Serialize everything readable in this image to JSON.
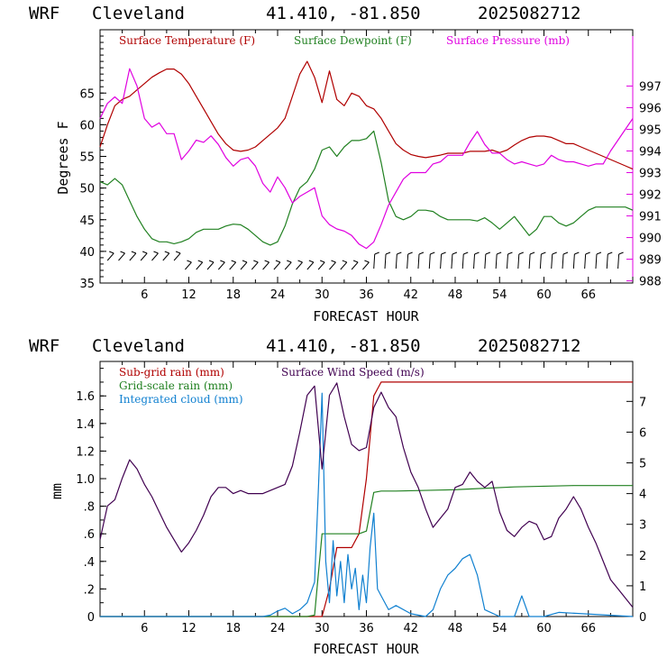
{
  "chart_data": [
    {
      "type": "line",
      "header": {
        "model": "WRF",
        "station": "Cleveland",
        "coords": "41.410, -81.850",
        "init": "2025082712"
      },
      "xlabel": "FORECAST HOUR",
      "ylabel": "Degrees F",
      "xlim": [
        0,
        72
      ],
      "x_ticks": [
        "6",
        "12",
        "18",
        "24",
        "30",
        "36",
        "42",
        "48",
        "54",
        "60",
        "66"
      ],
      "ylim": [
        35,
        75
      ],
      "y_ticks": [
        "35",
        "40",
        "45",
        "50",
        "55",
        "60",
        "65"
      ],
      "y2lim": [
        987.9,
        999.6
      ],
      "y2_ticks": [
        "988",
        "989",
        "990",
        "991",
        "992",
        "993",
        "994",
        "995",
        "996",
        "997"
      ],
      "series": [
        {
          "name": "Surface Temperature (F)",
          "color": "#b00000",
          "axis": "left",
          "x": [
            0,
            1,
            2,
            3,
            4,
            5,
            6,
            7,
            8,
            9,
            10,
            11,
            12,
            13,
            14,
            15,
            16,
            17,
            18,
            19,
            20,
            21,
            22,
            23,
            24,
            25,
            26,
            27,
            28,
            29,
            30,
            31,
            32,
            33,
            34,
            35,
            36,
            37,
            38,
            39,
            40,
            41,
            42,
            43,
            44,
            45,
            46,
            47,
            48,
            49,
            50,
            51,
            52,
            53,
            54,
            55,
            56,
            57,
            58,
            59,
            60,
            61,
            62,
            63,
            64,
            65,
            66,
            67,
            68,
            69,
            70,
            71,
            72
          ],
          "values": [
            56.5,
            60,
            63,
            64,
            64.5,
            65.5,
            66.5,
            67.5,
            68.2,
            68.8,
            68.8,
            68,
            66.5,
            64.5,
            62.5,
            60.5,
            58.5,
            57,
            56,
            55.8,
            56,
            56.5,
            57.5,
            58.5,
            59.5,
            61,
            64.5,
            68,
            70,
            67.5,
            63.5,
            68.5,
            64,
            63,
            65,
            64.5,
            63,
            62.5,
            61,
            59,
            57,
            56,
            55.3,
            55,
            54.8,
            55,
            55.2,
            55.5,
            55.5,
            55.5,
            55.8,
            55.8,
            55.8,
            56,
            55.6,
            56,
            56.8,
            57.5,
            58,
            58.2,
            58.2,
            58,
            57.5,
            57,
            57,
            56.5,
            56,
            55.5,
            55,
            54.5,
            54,
            53.5,
            53
          ]
        },
        {
          "name": "Surface Dewpoint (F)",
          "color": "#208020",
          "axis": "left",
          "x": [
            0,
            1,
            2,
            3,
            4,
            5,
            6,
            7,
            8,
            9,
            10,
            11,
            12,
            13,
            14,
            15,
            16,
            17,
            18,
            19,
            20,
            21,
            22,
            23,
            24,
            25,
            26,
            27,
            28,
            29,
            30,
            31,
            32,
            33,
            34,
            35,
            36,
            37,
            38,
            39,
            40,
            41,
            42,
            43,
            44,
            45,
            46,
            47,
            48,
            49,
            50,
            51,
            52,
            53,
            54,
            55,
            56,
            57,
            58,
            59,
            60,
            61,
            62,
            63,
            64,
            65,
            66,
            67,
            68,
            69,
            70,
            71,
            72
          ],
          "values": [
            51,
            50.5,
            51.5,
            50.5,
            48,
            45.5,
            43.5,
            42,
            41.5,
            41.5,
            41.2,
            41.5,
            42,
            43,
            43.5,
            43.5,
            43.5,
            44,
            44.3,
            44.2,
            43.5,
            42.5,
            41.5,
            41,
            41.5,
            44,
            47.5,
            50,
            51,
            53,
            56,
            56.5,
            55,
            56.5,
            57.5,
            57.5,
            57.8,
            59,
            54,
            48,
            45.5,
            45,
            45.5,
            46.5,
            46.5,
            46.3,
            45.5,
            45,
            45,
            45,
            45,
            44.8,
            45.3,
            44.5,
            43.5,
            44.5,
            45.5,
            44,
            42.5,
            43.5,
            45.5,
            45.5,
            44.5,
            44,
            44.5,
            45.5,
            46.5,
            47,
            47,
            47,
            47,
            47,
            46.5
          ]
        },
        {
          "name": "Surface Pressure (mb)",
          "color": "#e000e0",
          "axis": "right",
          "x": [
            0,
            1,
            2,
            3,
            4,
            5,
            6,
            7,
            8,
            9,
            10,
            11,
            12,
            13,
            14,
            15,
            16,
            17,
            18,
            19,
            20,
            21,
            22,
            23,
            24,
            25,
            26,
            27,
            28,
            29,
            30,
            31,
            32,
            33,
            34,
            35,
            36,
            37,
            38,
            39,
            40,
            41,
            42,
            43,
            44,
            45,
            46,
            47,
            48,
            49,
            50,
            51,
            52,
            53,
            54,
            55,
            56,
            57,
            58,
            59,
            60,
            61,
            62,
            63,
            64,
            65,
            66,
            67,
            68,
            69,
            70,
            71,
            72
          ],
          "values": [
            995.5,
            996.2,
            996.5,
            996.2,
            997.8,
            997,
            995.5,
            995.1,
            995.3,
            994.8,
            994.8,
            993.6,
            994,
            994.5,
            994.4,
            994.7,
            994.3,
            993.7,
            993.3,
            993.6,
            993.7,
            993.3,
            992.5,
            992.1,
            992.8,
            992.3,
            991.6,
            991.9,
            992.1,
            992.3,
            991,
            990.6,
            990.4,
            990.3,
            990.1,
            989.7,
            989.5,
            989.8,
            990.6,
            991.5,
            992.1,
            992.7,
            993,
            993,
            993,
            993.4,
            993.5,
            993.8,
            993.8,
            993.8,
            994.4,
            994.9,
            994.3,
            993.9,
            993.9,
            993.6,
            993.4,
            993.5,
            993.4,
            993.3,
            993.4,
            993.8,
            993.6,
            993.5,
            993.5,
            993.4,
            993.3,
            993.4,
            993.4,
            994,
            994.5,
            995,
            995.5
          ]
        }
      ],
      "wind_barbs": "present"
    },
    {
      "type": "line",
      "header": {
        "model": "WRF",
        "station": "Cleveland",
        "coords": "41.410, -81.850",
        "init": "2025082712"
      },
      "xlabel": "FORECAST HOUR",
      "ylabel": "mm",
      "xlim": [
        0,
        72
      ],
      "x_ticks": [
        "6",
        "12",
        "18",
        "24",
        "30",
        "36",
        "42",
        "48",
        "54",
        "60",
        "66"
      ],
      "ylim": [
        0,
        1.85
      ],
      "y_ticks": [
        "0",
        ".2",
        ".4",
        ".6",
        ".8",
        "1.0",
        "1.2",
        "1.4",
        "1.6"
      ],
      "y2lim": [
        0,
        8.3
      ],
      "y2_ticks": [
        "0",
        "1",
        "2",
        "3",
        "4",
        "5",
        "6",
        "7"
      ],
      "series": [
        {
          "name": "Sub-grid rain (mm)",
          "color": "#b00000",
          "axis": "left",
          "x": [
            0,
            30,
            31,
            32,
            33,
            34,
            35,
            36,
            37,
            38,
            72
          ],
          "values": [
            0,
            0,
            0.2,
            0.5,
            0.5,
            0.5,
            0.6,
            1.0,
            1.6,
            1.7,
            1.7
          ]
        },
        {
          "name": "Grid-scale rain (mm)",
          "color": "#208020",
          "axis": "left",
          "x": [
            0,
            28,
            29,
            30,
            31,
            32,
            33,
            34,
            35,
            36,
            37,
            38,
            39,
            40,
            48,
            56,
            64,
            72
          ],
          "values": [
            0,
            0,
            0.01,
            0.6,
            0.6,
            0.6,
            0.6,
            0.6,
            0.6,
            0.62,
            0.9,
            0.91,
            0.91,
            0.91,
            0.92,
            0.94,
            0.95,
            0.95
          ]
        },
        {
          "name": "Integrated cloud (mm)",
          "color": "#1080d0",
          "axis": "left",
          "x": [
            0,
            22,
            23,
            24,
            25,
            26,
            27,
            28,
            29,
            29.5,
            30,
            30.5,
            31,
            31.5,
            32,
            32.5,
            33,
            33.5,
            34,
            34.5,
            35,
            35.5,
            36,
            36.5,
            37,
            37.5,
            38,
            39,
            40,
            42,
            44,
            45,
            46,
            47,
            48,
            49,
            50,
            51,
            52,
            54,
            56,
            57,
            58,
            60,
            62,
            72
          ],
          "values": [
            0,
            0,
            0.01,
            0.04,
            0.06,
            0.02,
            0.05,
            0.1,
            0.25,
            0.9,
            1.62,
            0.4,
            0.1,
            0.55,
            0.15,
            0.4,
            0.1,
            0.45,
            0.2,
            0.35,
            0.05,
            0.3,
            0.1,
            0.5,
            0.75,
            0.2,
            0.15,
            0.05,
            0.08,
            0.02,
            0.0,
            0.05,
            0.2,
            0.3,
            0.35,
            0.42,
            0.45,
            0.3,
            0.05,
            0.0,
            0.0,
            0.15,
            0.0,
            0.0,
            0.03,
            0.0
          ]
        },
        {
          "name": "Surface Wind Speed (m/s)",
          "color": "#400050",
          "axis": "right",
          "x": [
            0,
            1,
            2,
            3,
            4,
            5,
            6,
            7,
            8,
            9,
            10,
            11,
            12,
            13,
            14,
            15,
            16,
            17,
            18,
            19,
            20,
            21,
            22,
            23,
            24,
            25,
            26,
            27,
            28,
            29,
            30,
            31,
            32,
            33,
            34,
            35,
            36,
            37,
            38,
            39,
            40,
            41,
            42,
            43,
            44,
            45,
            46,
            47,
            48,
            49,
            50,
            51,
            52,
            53,
            54,
            55,
            56,
            57,
            58,
            59,
            60,
            61,
            62,
            63,
            64,
            65,
            66,
            67,
            68,
            69,
            70,
            71,
            72
          ],
          "values": [
            2.5,
            3.6,
            3.8,
            4.5,
            5.1,
            4.8,
            4.3,
            3.9,
            3.4,
            2.9,
            2.5,
            2.1,
            2.4,
            2.8,
            3.3,
            3.9,
            4.2,
            4.2,
            4.0,
            4.1,
            4.0,
            4.0,
            4.0,
            4.1,
            4.2,
            4.3,
            4.9,
            6.0,
            7.2,
            7.5,
            4.8,
            7.2,
            7.6,
            6.5,
            5.6,
            5.4,
            5.5,
            6.8,
            7.3,
            6.8,
            6.5,
            5.5,
            4.7,
            4.2,
            3.5,
            2.9,
            3.2,
            3.5,
            4.2,
            4.3,
            4.7,
            4.4,
            4.2,
            4.4,
            3.4,
            2.8,
            2.6,
            2.9,
            3.1,
            3.0,
            2.5,
            2.6,
            3.2,
            3.5,
            3.9,
            3.5,
            2.9,
            2.4,
            1.8,
            1.2,
            0.9,
            0.6,
            0.3
          ]
        }
      ]
    }
  ]
}
